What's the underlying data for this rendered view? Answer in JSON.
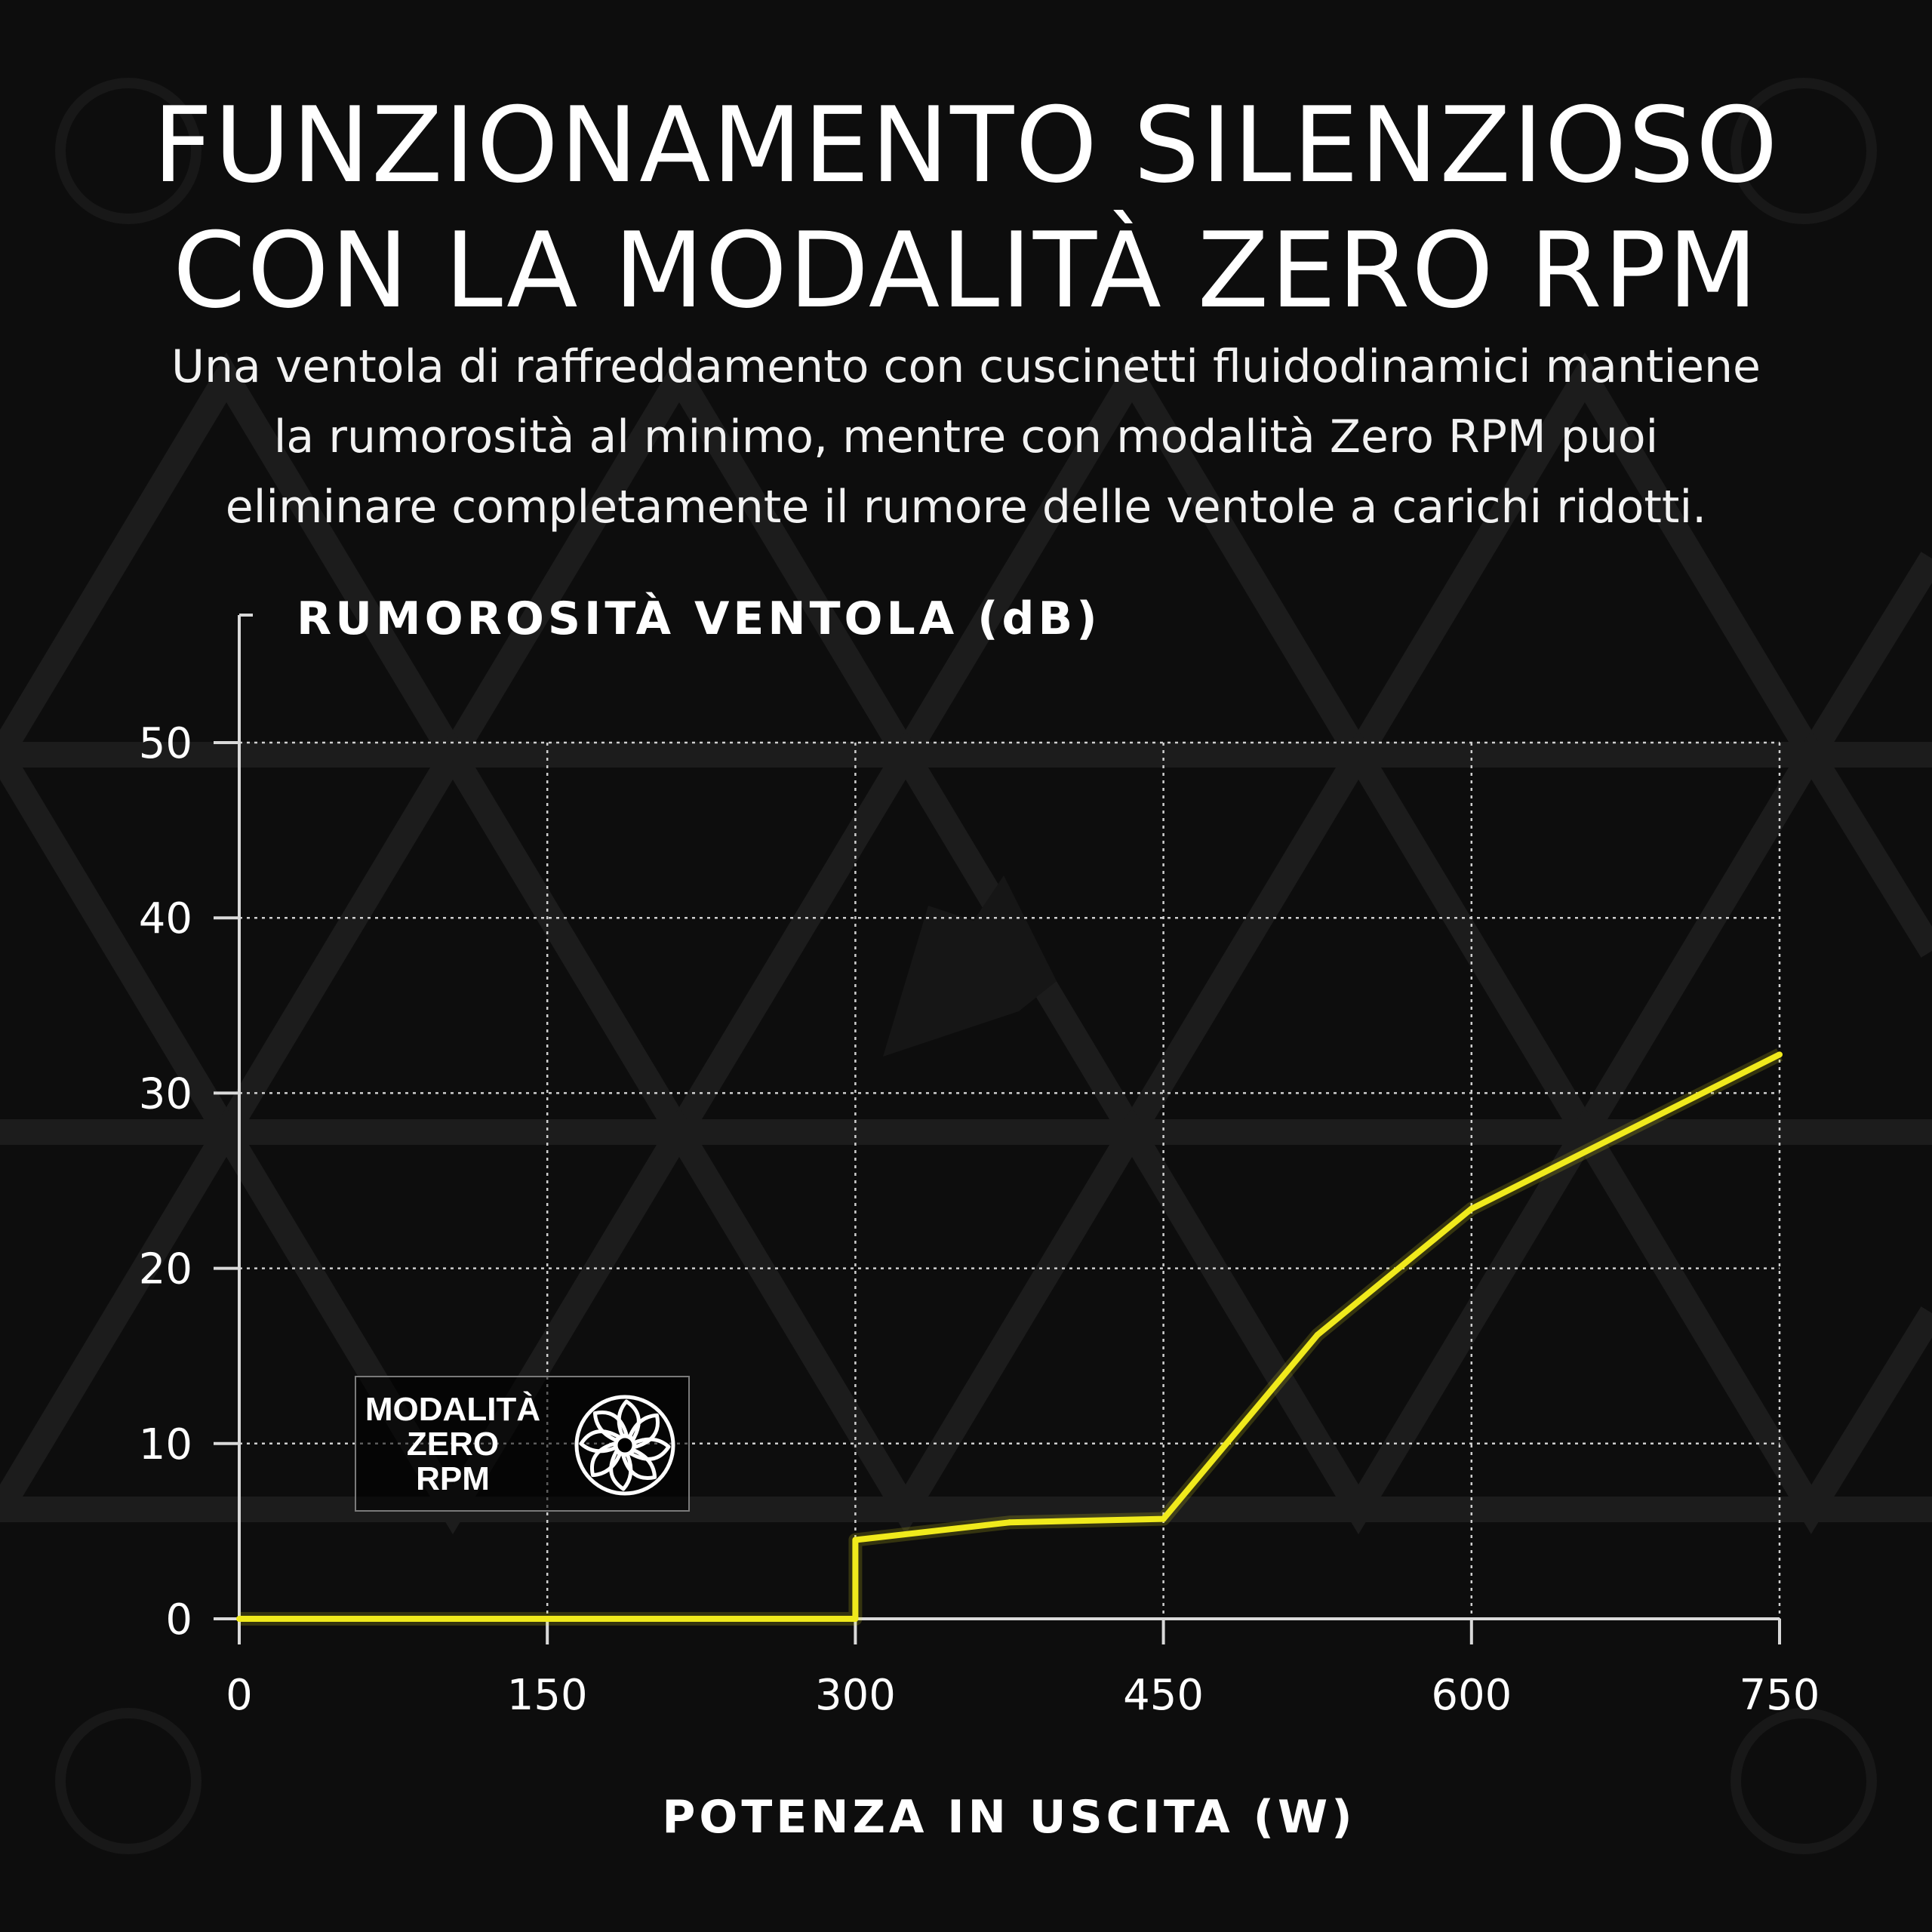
{
  "title_lines": [
    "FUNZIONAMENTO SILENZIOSO",
    "CON LA MODALITÀ ZERO RPM"
  ],
  "subtitle_lines": [
    "Una ventola di raffreddamento con cuscinetti fluidodinamici mantiene",
    "la rumorosità al minimo, mentre con modalità Zero RPM puoi",
    "eliminare completamente il rumore delle ventole a carichi ridotti."
  ],
  "badge": {
    "lines": [
      "MODALITÀ",
      "ZERO",
      "RPM"
    ],
    "icon": "fan-icon"
  },
  "colors": {
    "background": "#0d0d0d",
    "line": "#f0ea1c",
    "axis": "#d9d9d9",
    "grid": "#cfcfcf",
    "text": "#ffffff"
  },
  "chart_data": {
    "type": "line",
    "ylabel": "RUMOROSITÀ VENTOLA (dB)",
    "xlabel": "POTENZA IN USCITA (W)",
    "xlim": [
      0,
      750
    ],
    "ylim": [
      0,
      50
    ],
    "x_ticks": [
      0,
      150,
      300,
      450,
      600,
      750
    ],
    "y_ticks": [
      0,
      10,
      20,
      30,
      40,
      50
    ],
    "grid": true,
    "series": [
      {
        "x": [
          0,
          300,
          300,
          375,
          450,
          525,
          600,
          750
        ],
        "y": [
          0,
          0,
          4.5,
          5.5,
          5.7,
          16.2,
          23.4,
          32.2
        ]
      }
    ]
  }
}
